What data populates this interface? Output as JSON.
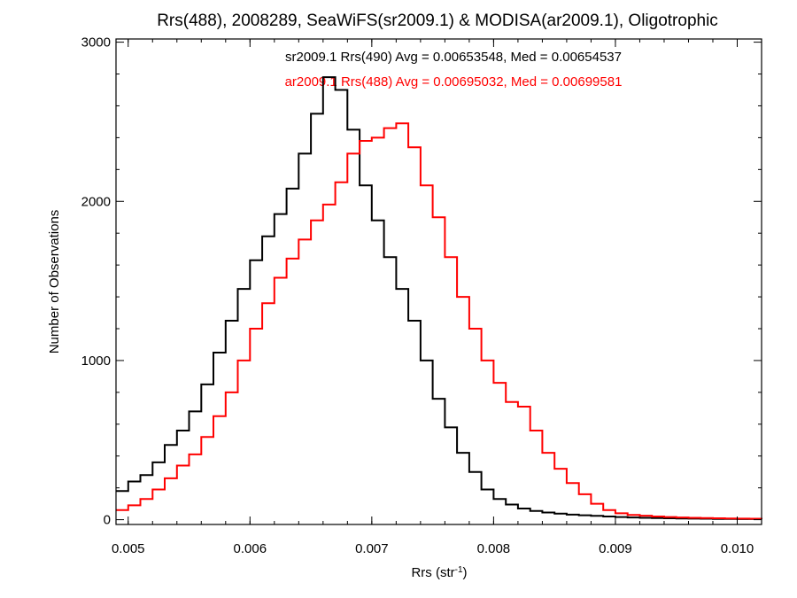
{
  "chart_data": {
    "type": "line",
    "title": "Rrs(488), 2008289, SeaWiFS(sr2009.1) & MODISA(ar2009.1), Oligotrophic",
    "xlabel": {
      "base": "Rrs (str",
      "sup": "-1",
      "close": ")"
    },
    "ylabel": "Number of Observations",
    "xlim": [
      0.0049,
      0.0102
    ],
    "ylim": [
      -30,
      3020
    ],
    "xticks": [
      0.005,
      0.006,
      0.007,
      0.008,
      0.009,
      0.01
    ],
    "xtick_labels": [
      "0.005",
      "0.006",
      "0.007",
      "0.008",
      "0.009",
      "0.010"
    ],
    "yticks": [
      0,
      1000,
      2000,
      3000
    ],
    "ytick_labels": [
      "0",
      "1000",
      "2000",
      "3000"
    ],
    "grid": false,
    "legend": "top-center",
    "annotations": [
      "sr2009.1 Rrs(490) Avg = 0.00653548, Med = 0.00654537",
      "ar2009.1 Rrs(488) Avg = 0.00695032, Med = 0.00699581"
    ],
    "series": [
      {
        "color": "#000000",
        "x": [
          0.0049,
          0.005,
          0.0051,
          0.0052,
          0.0053,
          0.0054,
          0.0055,
          0.0056,
          0.0057,
          0.0058,
          0.0059,
          0.006,
          0.0061,
          0.0062,
          0.0063,
          0.0064,
          0.0065,
          0.0066,
          0.0067,
          0.0068,
          0.0069,
          0.007,
          0.0071,
          0.0072,
          0.0073,
          0.0074,
          0.0075,
          0.0076,
          0.0077,
          0.0078,
          0.0079,
          0.008,
          0.0081,
          0.0082,
          0.0083,
          0.0084,
          0.0085,
          0.0086,
          0.0087,
          0.0088,
          0.0089,
          0.009,
          0.0091,
          0.0092,
          0.0093,
          0.0094,
          0.0095,
          0.0096,
          0.0097,
          0.0098,
          0.0099,
          0.01,
          0.0101,
          0.0102
        ],
        "values": [
          180,
          240,
          280,
          360,
          470,
          560,
          680,
          850,
          1050,
          1250,
          1450,
          1630,
          1780,
          1920,
          2080,
          2300,
          2550,
          2780,
          2700,
          2450,
          2100,
          1880,
          1650,
          1450,
          1250,
          1000,
          760,
          580,
          420,
          300,
          190,
          130,
          95,
          70,
          55,
          45,
          38,
          32,
          28,
          24,
          20,
          17,
          14,
          12,
          10,
          9,
          8,
          7,
          6,
          5,
          5,
          4,
          4,
          3
        ]
      },
      {
        "color": "#ff0000",
        "x": [
          0.0049,
          0.005,
          0.0051,
          0.0052,
          0.0053,
          0.0054,
          0.0055,
          0.0056,
          0.0057,
          0.0058,
          0.0059,
          0.006,
          0.0061,
          0.0062,
          0.0063,
          0.0064,
          0.0065,
          0.0066,
          0.0067,
          0.0068,
          0.0069,
          0.007,
          0.0071,
          0.0072,
          0.0073,
          0.0074,
          0.0075,
          0.0076,
          0.0077,
          0.0078,
          0.0079,
          0.008,
          0.0081,
          0.0082,
          0.0083,
          0.0084,
          0.0085,
          0.0086,
          0.0087,
          0.0088,
          0.0089,
          0.009,
          0.0091,
          0.0092,
          0.0093,
          0.0094,
          0.0095,
          0.0096,
          0.0097,
          0.0098,
          0.0099,
          0.01,
          0.0101,
          0.0102
        ],
        "values": [
          60,
          90,
          130,
          190,
          260,
          340,
          410,
          520,
          650,
          800,
          1000,
          1200,
          1360,
          1520,
          1640,
          1760,
          1880,
          1980,
          2120,
          2300,
          2380,
          2400,
          2460,
          2490,
          2340,
          2100,
          1900,
          1650,
          1400,
          1200,
          1000,
          860,
          740,
          710,
          560,
          420,
          320,
          230,
          160,
          100,
          60,
          40,
          30,
          25,
          20,
          17,
          14,
          12,
          10,
          9,
          8,
          7,
          6,
          5
        ]
      }
    ]
  }
}
